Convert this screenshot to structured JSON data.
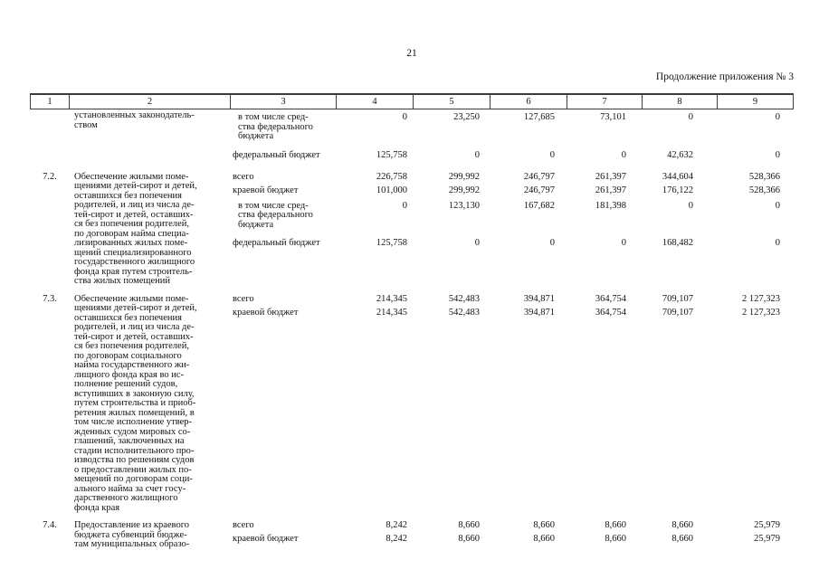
{
  "page": {
    "number": "21",
    "continuation_note": "Продолжение приложения № 3"
  },
  "table": {
    "column_headers": [
      "1",
      "2",
      "3",
      "4",
      "5",
      "6",
      "7",
      "8",
      "9"
    ],
    "blocks": [
      {
        "num": "",
        "col2": "установленных законодатель-\nством",
        "subrows": [
          {
            "label": "в том числе сред-\nства федерального\nбюджета",
            "values": [
              "0",
              "23,250",
              "127,685",
              "73,101",
              "0",
              "0"
            ]
          },
          {
            "label": "федеральный бюджет",
            "values": [
              "125,758",
              "0",
              "0",
              "0",
              "42,632",
              "0"
            ]
          }
        ]
      },
      {
        "num": "7.2.",
        "col2": "Обеспечение жилыми поме-\nщениями детей-сирот и детей,\nоставшихся без попечения\nродителей, и лиц из числа де-\nтей-сирот и детей, оставших-\nся без попечения родителей,\nпо договорам найма специа-\nлизированных жилых поме-\nщений специализированного\nгосударственного жилищного\nфонда края путем строитель-\nства жилых помещений",
        "subrows": [
          {
            "label": "всего",
            "values": [
              "226,758",
              "299,992",
              "246,797",
              "261,397",
              "344,604",
              "528,366"
            ]
          },
          {
            "label": "краевой бюджет",
            "values": [
              "101,000",
              "299,992",
              "246,797",
              "261,397",
              "176,122",
              "528,366"
            ]
          },
          {
            "label": "в том числе сред-\nства федерального\nбюджета",
            "values": [
              "0",
              "123,130",
              "167,682",
              "181,398",
              "0",
              "0"
            ]
          },
          {
            "label": "федеральный бюджет",
            "values": [
              "125,758",
              "0",
              "0",
              "0",
              "168,482",
              "0"
            ]
          }
        ]
      },
      {
        "num": "7.3.",
        "col2": "Обеспечение жилыми поме-\nщениями детей-сирот и детей,\nоставшихся без попечения\nродителей, и лиц из числа де-\nтей-сирот и детей, оставших-\nся без попечения родителей,\nпо договорам социального\nнайма государственного жи-\nлищного фонда края во ис-\nполнение решений судов,\nвступивших в законную силу,\nпутем строительства и приоб-\nретения жилых помещений, в\nтом числе исполнение утвер-\nжденных судом мировых со-\nглашений, заключенных на\nстадии исполнительного про-\nизводства по решениям судов\nо предоставлении жилых по-\nмещений по договорам соци-\nального найма за счет госу-\nдарственного жилищного\nфонда края",
        "subrows": [
          {
            "label": "всего",
            "values": [
              "214,345",
              "542,483",
              "394,871",
              "364,754",
              "709,107",
              "2 127,323"
            ]
          },
          {
            "label": "краевой бюджет",
            "values": [
              "214,345",
              "542,483",
              "394,871",
              "364,754",
              "709,107",
              "2 127,323"
            ]
          }
        ]
      },
      {
        "num": "7.4.",
        "col2": "Предоставление из краевого\nбюджета субвенций бюдже-\nтам муниципальных образо-",
        "subrows": [
          {
            "label": "всего",
            "values": [
              "8,242",
              "8,660",
              "8,660",
              "8,660",
              "8,660",
              "25,979"
            ]
          },
          {
            "label": "краевой бюджет",
            "values": [
              "8,242",
              "8,660",
              "8,660",
              "8,660",
              "8,660",
              "25,979"
            ]
          }
        ]
      }
    ]
  }
}
